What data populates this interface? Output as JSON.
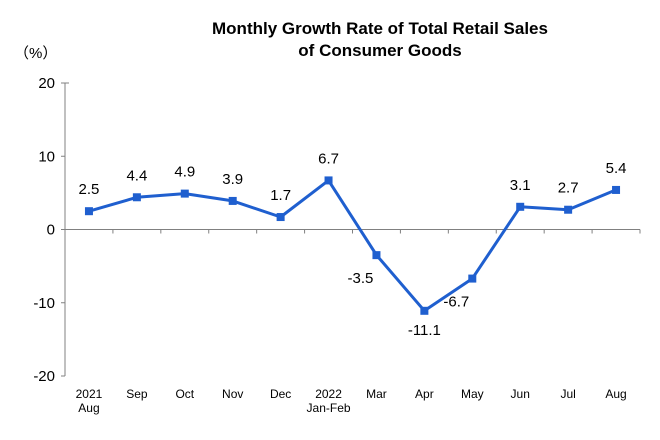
{
  "chart_data": {
    "type": "line",
    "title_line1": "Monthly Growth Rate of Total Retail Sales",
    "title_line2": "of Consumer Goods",
    "unit_label": "（%）",
    "ylim": [
      -20,
      20
    ],
    "yticks": [
      "20",
      "10",
      "0",
      "-10",
      "-20"
    ],
    "ytick_values": [
      20,
      10,
      0,
      -10,
      -20
    ],
    "categories": [
      [
        "2021",
        "Aug"
      ],
      [
        "Sep"
      ],
      [
        "Oct"
      ],
      [
        "Nov"
      ],
      [
        "Dec"
      ],
      [
        "2022",
        "Jan-Feb"
      ],
      [
        "Mar"
      ],
      [
        "Apr"
      ],
      [
        "May"
      ],
      [
        "Jun"
      ],
      [
        "Jul"
      ],
      [
        "Aug"
      ]
    ],
    "values": [
      2.5,
      4.4,
      4.9,
      3.9,
      1.7,
      6.7,
      -3.5,
      -11.1,
      -6.7,
      3.1,
      2.7,
      5.4
    ],
    "value_labels": [
      "2.5",
      "4.4",
      "4.9",
      "3.9",
      "1.7",
      "6.7",
      "-3.5",
      "-11.1",
      "-6.7",
      "3.1",
      "2.7",
      "5.4"
    ],
    "grid": false,
    "legend": "none",
    "line_color": "#1f5fcf",
    "axis_color": "#808080"
  }
}
